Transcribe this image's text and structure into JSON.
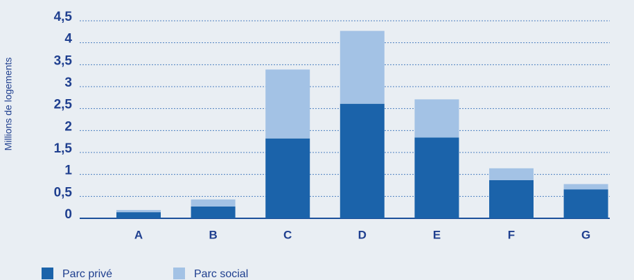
{
  "chart_data": {
    "type": "stacked_bar",
    "y_label": "Millions de logements",
    "categories": [
      "A",
      "B",
      "C",
      "D",
      "E",
      "F",
      "G"
    ],
    "series": [
      {
        "name": "Parc privé",
        "color": "#1b63aa",
        "values": [
          0.14,
          0.27,
          1.82,
          2.61,
          1.84,
          0.87,
          0.66
        ]
      },
      {
        "name": "Parc social",
        "color": "#a3c2e5",
        "values": [
          0.05,
          0.16,
          1.57,
          1.66,
          0.87,
          0.27,
          0.12
        ]
      }
    ],
    "ylim": [
      0,
      4.5
    ],
    "yticks": [
      0,
      {
        "value": 0.5,
        "label": "0,5"
      },
      1,
      {
        "value": 1.5,
        "label": "1,5"
      },
      2,
      {
        "value": 2.5,
        "label": "2,5"
      },
      3,
      {
        "value": 3.5,
        "label": "3,5"
      },
      4,
      {
        "value": 4.5,
        "label": "4,5"
      }
    ],
    "grid": true
  }
}
